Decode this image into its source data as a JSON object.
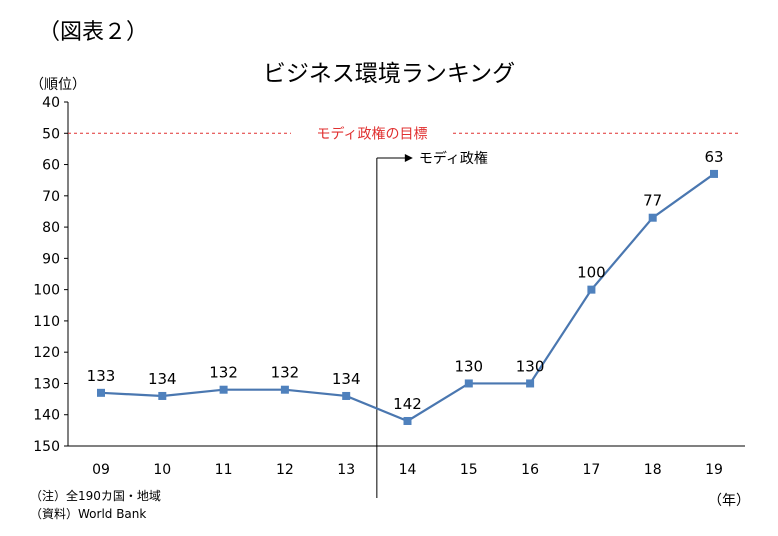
{
  "figure_label": "（図表２）",
  "chart_data": {
    "type": "line",
    "title": "ビジネス環境ランキング",
    "ylabel": "（順位）",
    "xlabel": "（年）",
    "y_inverted": true,
    "ylim": [
      40,
      150
    ],
    "yticks": [
      "40",
      "50",
      "60",
      "70",
      "80",
      "90",
      "100",
      "110",
      "120",
      "130",
      "140",
      "150"
    ],
    "categories": [
      "09",
      "10",
      "11",
      "12",
      "13",
      "14",
      "15",
      "16",
      "17",
      "18",
      "19"
    ],
    "series": [
      {
        "values": [
          133,
          134,
          132,
          132,
          134,
          142,
          130,
          130,
          100,
          77,
          63
        ]
      }
    ],
    "target_line": {
      "value": 50,
      "label": "モディ政権の目標"
    },
    "event_marker": {
      "after_category": "13",
      "label": "モディ政権"
    },
    "grid": false,
    "colors": {
      "series": "#4a77b0",
      "marker": "#4f81bd",
      "target": "#e03030",
      "axis": "#000000"
    }
  },
  "notes": [
    "（注）全190カ国・地域",
    "（資料）World Bank"
  ]
}
